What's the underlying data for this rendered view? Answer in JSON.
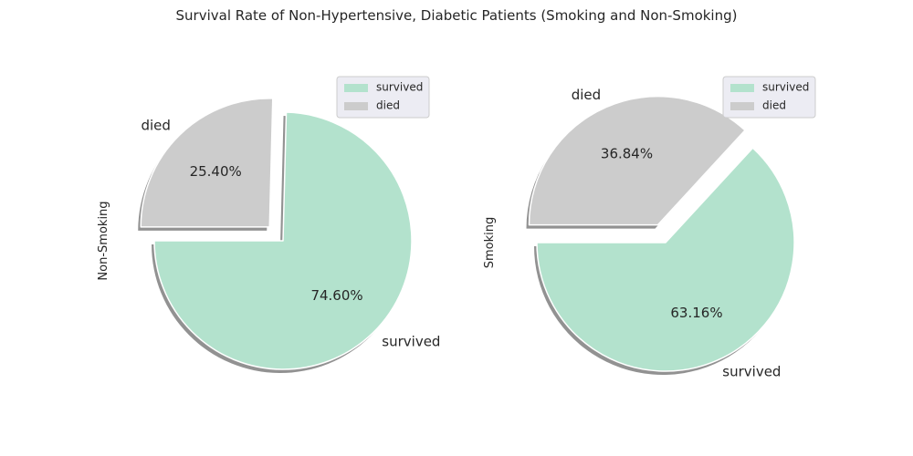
{
  "chart_data": {
    "title": "Survival Rate of Non-Hypertensive, Diabetic Patients (Smoking and Non-Smoking)",
    "charts": [
      {
        "type": "pie",
        "ylabel": "Non-Smoking",
        "slices": [
          {
            "label": "survived",
            "value": 74.6,
            "pct_label": "74.60%",
            "color": "#b3e2cd",
            "exploded": false
          },
          {
            "label": "died",
            "value": 25.4,
            "pct_label": "25.40%",
            "color": "#cccccc",
            "exploded": true
          }
        ],
        "shadow": true,
        "legend": {
          "placement": "top-right",
          "entries": [
            "survived",
            "died"
          ]
        }
      },
      {
        "type": "pie",
        "ylabel": "Smoking",
        "slices": [
          {
            "label": "survived",
            "value": 63.16,
            "pct_label": "63.16%",
            "color": "#b3e2cd",
            "exploded": false
          },
          {
            "label": "died",
            "value": 36.84,
            "pct_label": "36.84%",
            "color": "#cccccc",
            "exploded": true
          }
        ],
        "shadow": true,
        "legend": {
          "placement": "top-right",
          "entries": [
            "survived",
            "died"
          ]
        }
      }
    ]
  }
}
